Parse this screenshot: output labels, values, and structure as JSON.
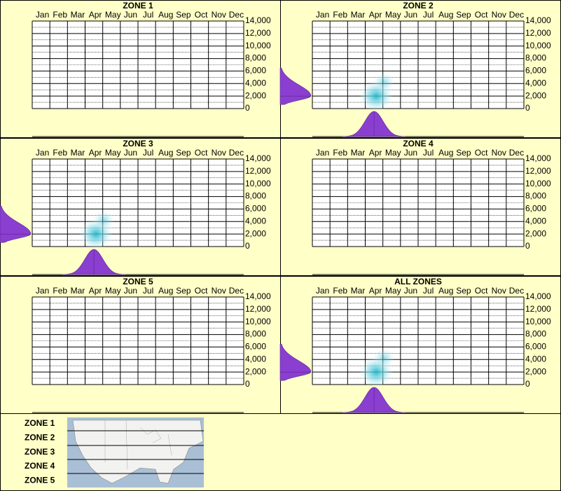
{
  "chart_data": [
    {
      "type": "density",
      "title": "ZONE 1",
      "categories": [
        "Jan",
        "Feb",
        "Mar",
        "Apr",
        "May",
        "Jun",
        "Jul",
        "Aug",
        "Sep",
        "Oct",
        "Nov",
        "Dec"
      ],
      "ylim": [
        0,
        14000
      ],
      "yticks": [
        0,
        {
          "value": 2000,
          "label": "2,000"
        },
        {
          "value": 4000,
          "label": "4,000"
        },
        {
          "value": 6000,
          "label": "6,000"
        },
        {
          "value": 8000,
          "label": "8,000"
        },
        {
          "value": 10000,
          "label": "10,000"
        },
        {
          "value": 12000,
          "label": "12,000"
        },
        {
          "value": 14000,
          "label": "14,000"
        }
      ]
    },
    {
      "type": "density",
      "title": "ZONE 2",
      "categories": [
        "Jan",
        "Feb",
        "Mar",
        "Apr",
        "May",
        "Jun",
        "Jul",
        "Aug",
        "Sep",
        "Oct",
        "Nov",
        "Dec"
      ],
      "ylim": [
        0,
        14000
      ],
      "yticks": [
        0,
        {
          "value": 2000,
          "label": "2,000"
        },
        {
          "value": 4000,
          "label": "4,000"
        },
        {
          "value": 6000,
          "label": "6,000"
        },
        {
          "value": 8000,
          "label": "8,000"
        },
        {
          "value": 10000,
          "label": "10,000"
        },
        {
          "value": 12000,
          "label": "12,000"
        },
        {
          "value": 14000,
          "label": "14,000"
        }
      ],
      "peak_month": "Apr",
      "peak_y": 2000
    },
    {
      "type": "density",
      "title": "ZONE 3",
      "categories": [
        "Jan",
        "Feb",
        "Mar",
        "Apr",
        "May",
        "Jun",
        "Jul",
        "Aug",
        "Sep",
        "Oct",
        "Nov",
        "Dec"
      ],
      "ylim": [
        0,
        14000
      ],
      "yticks": [
        0,
        {
          "value": 2000,
          "label": "2,000"
        },
        {
          "value": 4000,
          "label": "4,000"
        },
        {
          "value": 6000,
          "label": "6,000"
        },
        {
          "value": 8000,
          "label": "8,000"
        },
        {
          "value": 10000,
          "label": "10,000"
        },
        {
          "value": 12000,
          "label": "12,000"
        },
        {
          "value": 14000,
          "label": "14,000"
        }
      ],
      "peak_month": "Apr",
      "peak_y": 2000
    },
    {
      "type": "density",
      "title": "ZONE 4",
      "categories": [
        "Jan",
        "Feb",
        "Mar",
        "Apr",
        "May",
        "Jun",
        "Jul",
        "Aug",
        "Sep",
        "Oct",
        "Nov",
        "Dec"
      ],
      "ylim": [
        0,
        14000
      ],
      "yticks": [
        0,
        {
          "value": 2000,
          "label": "2,000"
        },
        {
          "value": 4000,
          "label": "4,000"
        },
        {
          "value": 6000,
          "label": "6,000"
        },
        {
          "value": 8000,
          "label": "8,000"
        },
        {
          "value": 10000,
          "label": "10,000"
        },
        {
          "value": 12000,
          "label": "12,000"
        },
        {
          "value": 14000,
          "label": "14,000"
        }
      ]
    },
    {
      "type": "density",
      "title": "ZONE 5",
      "categories": [
        "Jan",
        "Feb",
        "Mar",
        "Apr",
        "May",
        "Jun",
        "Jul",
        "Aug",
        "Sep",
        "Oct",
        "Nov",
        "Dec"
      ],
      "ylim": [
        0,
        14000
      ],
      "yticks": [
        0,
        {
          "value": 2000,
          "label": "2,000"
        },
        {
          "value": 4000,
          "label": "4,000"
        },
        {
          "value": 6000,
          "label": "6,000"
        },
        {
          "value": 8000,
          "label": "8,000"
        },
        {
          "value": 10000,
          "label": "10,000"
        },
        {
          "value": 12000,
          "label": "12,000"
        },
        {
          "value": 14000,
          "label": "14,000"
        }
      ]
    },
    {
      "type": "density",
      "title": "ALL ZONES",
      "categories": [
        "Jan",
        "Feb",
        "Mar",
        "Apr",
        "May",
        "Jun",
        "Jul",
        "Aug",
        "Sep",
        "Oct",
        "Nov",
        "Dec"
      ],
      "ylim": [
        0,
        14000
      ],
      "yticks": [
        0,
        {
          "value": 2000,
          "label": "2,000"
        },
        {
          "value": 4000,
          "label": "4,000"
        },
        {
          "value": 6000,
          "label": "6,000"
        },
        {
          "value": 8000,
          "label": "8,000"
        },
        {
          "value": 10000,
          "label": "10,000"
        },
        {
          "value": 12000,
          "label": "12,000"
        },
        {
          "value": 14000,
          "label": "14,000"
        }
      ],
      "peak_month": "Apr",
      "peak_y": 2000
    }
  ],
  "legend": {
    "zones": [
      "ZONE 1",
      "ZONE 2",
      "ZONE 3",
      "ZONE 4",
      "ZONE 5"
    ]
  }
}
